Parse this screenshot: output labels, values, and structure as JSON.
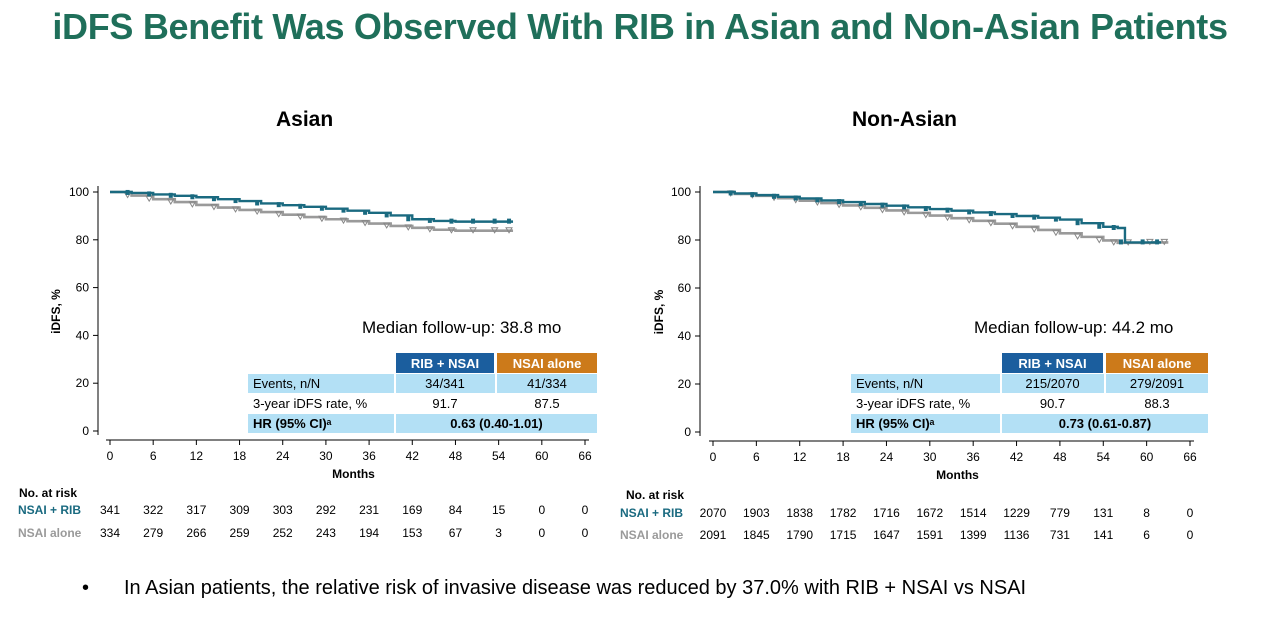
{
  "title": "iDFS Benefit Was Observed With RIB in Asian and Non-Asian Patients",
  "colors": {
    "title": "#1f6f5a",
    "rib": "#1a6a80",
    "nsai": "#9a9a9a",
    "rib_header": "#1b5e9e",
    "nsai_header": "#cc7a1a",
    "row_bg": "#b3e0f5"
  },
  "chart_data": [
    {
      "type": "line",
      "title": "Asian",
      "xlabel": "Months",
      "ylabel": "iDFS, %",
      "xlim": [
        0,
        66
      ],
      "ylim": [
        0,
        100
      ],
      "xticks": [
        "0",
        "6",
        "12",
        "18",
        "24",
        "30",
        "36",
        "42",
        "48",
        "54",
        "60",
        "66"
      ],
      "yticks": [
        "0",
        "20",
        "40",
        "60",
        "80",
        "100"
      ],
      "series": [
        {
          "name": "NSAI + RIB",
          "x": [
            0,
            3,
            6,
            9,
            12,
            15,
            18,
            21,
            24,
            27,
            30,
            33,
            36,
            39,
            42,
            45,
            48,
            51,
            54,
            56
          ],
          "values": [
            100,
            99.6,
            99,
            98.4,
            97.8,
            97,
            96.2,
            95.2,
            94.5,
            93.8,
            93,
            92.2,
            91.3,
            90.2,
            88.6,
            87.9,
            87.6,
            87.6,
            87.6,
            87.6
          ]
        },
        {
          "name": "NSAI alone",
          "x": [
            0,
            3,
            6,
            9,
            12,
            15,
            18,
            21,
            24,
            27,
            30,
            33,
            36,
            39,
            42,
            45,
            48,
            51,
            54,
            56
          ],
          "values": [
            100,
            98.5,
            97,
            95.8,
            94.6,
            93.5,
            92.5,
            91.6,
            90.5,
            89.5,
            88.6,
            87.8,
            86.8,
            85.8,
            85,
            84.2,
            83.8,
            83.8,
            83.8,
            83.8
          ]
        }
      ],
      "annotation": "Median follow-up: 38.8 mo",
      "table": {
        "headers": [
          "RIB + NSAI",
          "NSAI alone"
        ],
        "rows": [
          {
            "label": "Events, n/N",
            "rib": "34/341",
            "nsai": "41/334"
          },
          {
            "label": "3-year iDFS rate, %",
            "rib": "91.7",
            "nsai": "87.5"
          }
        ],
        "hr_label": "HR (95% CI)ᵃ",
        "hr_value": "0.63 (0.40-1.01)"
      },
      "risk": {
        "title": "No. at risk",
        "rows": [
          {
            "label": "NSAI + RIB",
            "values": [
              "341",
              "322",
              "317",
              "309",
              "303",
              "292",
              "231",
              "169",
              "84",
              "15",
              "0",
              "0"
            ]
          },
          {
            "label": "NSAI alone",
            "values": [
              "334",
              "279",
              "266",
              "259",
              "252",
              "243",
              "194",
              "153",
              "67",
              "3",
              "0",
              "0"
            ]
          }
        ]
      }
    },
    {
      "type": "line",
      "title": "Non-Asian",
      "xlabel": "Months",
      "ylabel": "iDFS, %",
      "xlim": [
        0,
        66
      ],
      "ylim": [
        0,
        100
      ],
      "xticks": [
        "0",
        "6",
        "12",
        "18",
        "24",
        "30",
        "36",
        "42",
        "48",
        "54",
        "60",
        "66"
      ],
      "yticks": [
        "0",
        "20",
        "40",
        "60",
        "80",
        "100"
      ],
      "series": [
        {
          "name": "NSAI + RIB",
          "x": [
            0,
            3,
            6,
            9,
            12,
            15,
            18,
            21,
            24,
            27,
            30,
            33,
            36,
            39,
            42,
            45,
            48,
            51,
            54,
            56,
            57,
            60,
            62
          ],
          "values": [
            100,
            99.4,
            98.7,
            98,
            97.3,
            96.5,
            95.8,
            95,
            94.3,
            93.6,
            92.9,
            92.2,
            91.5,
            90.8,
            90,
            89.3,
            88.5,
            87,
            85.5,
            85,
            79,
            79,
            79
          ]
        },
        {
          "name": "NSAI alone",
          "x": [
            0,
            3,
            6,
            9,
            12,
            15,
            18,
            21,
            24,
            27,
            30,
            33,
            36,
            39,
            42,
            45,
            48,
            51,
            54,
            56,
            58,
            61,
            63
          ],
          "values": [
            100,
            99.2,
            98.4,
            97.4,
            96.4,
            95.4,
            94.4,
            93.4,
            92.3,
            91.3,
            90.2,
            89.1,
            88,
            86.8,
            85.5,
            84.2,
            82.8,
            81.3,
            79.8,
            78.8,
            78.8,
            79,
            79
          ]
        }
      ],
      "annotation": "Median follow-up: 44.2 mo",
      "table": {
        "headers": [
          "RIB + NSAI",
          "NSAI alone"
        ],
        "rows": [
          {
            "label": "Events, n/N",
            "rib": "215/2070",
            "nsai": "279/2091"
          },
          {
            "label": "3-year iDFS rate, %",
            "rib": "90.7",
            "nsai": "88.3"
          }
        ],
        "hr_label": "HR (95% CI)ᵃ",
        "hr_value": "0.73 (0.61-0.87)"
      },
      "risk": {
        "title": "No. at risk",
        "rows": [
          {
            "label": "NSAI + RIB",
            "values": [
              "2070",
              "1903",
              "1838",
              "1782",
              "1716",
              "1672",
              "1514",
              "1229",
              "779",
              "131",
              "8",
              "0"
            ]
          },
          {
            "label": "NSAI alone",
            "values": [
              "2091",
              "1845",
              "1790",
              "1715",
              "1647",
              "1591",
              "1399",
              "1136",
              "731",
              "141",
              "6",
              "0"
            ]
          }
        ]
      }
    }
  ],
  "bullet": {
    "symbol": "•",
    "text": "In Asian patients, the relative risk of invasive disease was reduced by 37.0% with RIB + NSAI vs NSAI"
  }
}
